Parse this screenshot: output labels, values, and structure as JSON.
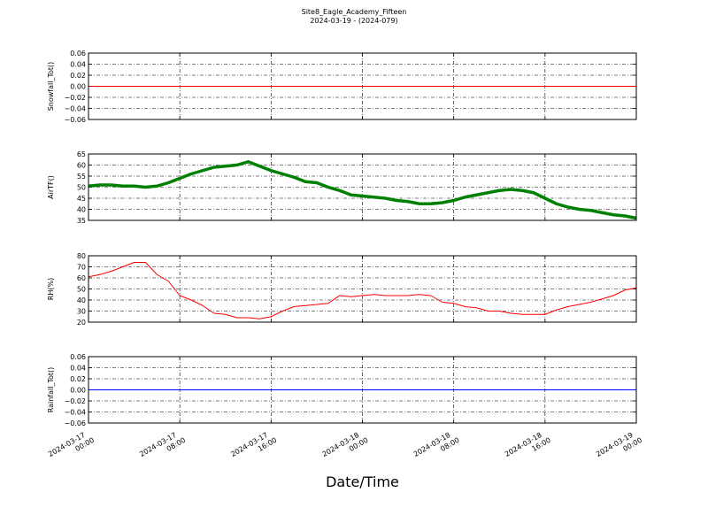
{
  "chart_data": [
    {
      "type": "line",
      "title": "Site8_Eagle_Academy_Fifteen",
      "subtitle": "2024-03-19 - (2024-079)",
      "ylabel": "Snowfall_Tot()",
      "x": [
        "2024-03-17 00:00",
        "2024-03-19 00:00"
      ],
      "series": [
        {
          "color": "#ff0000",
          "values": [
            0,
            0
          ]
        }
      ],
      "xlim": [
        "2024-03-17 00:00",
        "2024-03-19 00:00"
      ],
      "xticks": [
        "2024-03-17 00:00",
        "2024-03-17 08:00",
        "2024-03-17 16:00",
        "2024-03-18 00:00",
        "2024-03-18 08:00",
        "2024-03-18 16:00",
        "2024-03-19 00:00"
      ],
      "ylim": [
        -0.06,
        0.06
      ],
      "yticks": [
        {
          "value": -0.06,
          "label": "−0.06"
        },
        {
          "value": -0.04,
          "label": "−0.04"
        },
        {
          "value": -0.02,
          "label": "−0.02"
        },
        {
          "value": 0,
          "label": "0.00"
        },
        0.02,
        0.04,
        0.06
      ],
      "grid": true
    },
    {
      "type": "line",
      "ylabel": "AirTF()",
      "x": [
        "2024-03-17 00:00",
        "2024-03-17 01:00",
        "2024-03-17 02:00",
        "2024-03-17 03:00",
        "2024-03-17 04:00",
        "2024-03-17 05:00",
        "2024-03-17 06:00",
        "2024-03-17 07:00",
        "2024-03-17 08:00",
        "2024-03-17 09:00",
        "2024-03-17 10:00",
        "2024-03-17 11:00",
        "2024-03-17 12:00",
        "2024-03-17 13:00",
        "2024-03-17 14:00",
        "2024-03-17 15:00",
        "2024-03-17 16:00",
        "2024-03-17 17:00",
        "2024-03-17 18:00",
        "2024-03-17 19:00",
        "2024-03-17 20:00",
        "2024-03-17 21:00",
        "2024-03-17 22:00",
        "2024-03-17 23:00",
        "2024-03-18 00:00",
        "2024-03-18 01:00",
        "2024-03-18 02:00",
        "2024-03-18 03:00",
        "2024-03-18 04:00",
        "2024-03-18 05:00",
        "2024-03-18 06:00",
        "2024-03-18 07:00",
        "2024-03-18 08:00",
        "2024-03-18 09:00",
        "2024-03-18 10:00",
        "2024-03-18 11:00",
        "2024-03-18 12:00",
        "2024-03-18 13:00",
        "2024-03-18 14:00",
        "2024-03-18 15:00",
        "2024-03-18 16:00",
        "2024-03-18 17:00",
        "2024-03-18 18:00",
        "2024-03-18 19:00",
        "2024-03-18 20:00",
        "2024-03-18 21:00",
        "2024-03-18 22:00",
        "2024-03-18 23:00",
        "2024-03-19 00:00"
      ],
      "series": [
        {
          "color": "#008000",
          "values": [
            50.5,
            51,
            51,
            50.5,
            50.5,
            50,
            50.5,
            52,
            54,
            56,
            57.5,
            59,
            59.5,
            60,
            61.5,
            59.5,
            57.5,
            56,
            54.5,
            52.5,
            52,
            50,
            48.5,
            46.5,
            46,
            45.5,
            45,
            44,
            43.5,
            42.5,
            42.5,
            43,
            44,
            45.5,
            46.5,
            47.5,
            48.5,
            49,
            48.5,
            47.5,
            45,
            42.5,
            41,
            40,
            39.5,
            38.5,
            37.5,
            37,
            36
          ]
        }
      ],
      "xlim": [
        "2024-03-17 00:00",
        "2024-03-19 00:00"
      ],
      "xticks": [
        "2024-03-17 00:00",
        "2024-03-17 08:00",
        "2024-03-17 16:00",
        "2024-03-18 00:00",
        "2024-03-18 08:00",
        "2024-03-18 16:00",
        "2024-03-19 00:00"
      ],
      "ylim": [
        35,
        65
      ],
      "yticks": [
        35,
        40,
        45,
        50,
        55,
        60,
        65
      ],
      "grid": true
    },
    {
      "type": "line",
      "ylabel": "RH(%)",
      "x": [
        "2024-03-17 00:00",
        "2024-03-17 01:00",
        "2024-03-17 02:00",
        "2024-03-17 03:00",
        "2024-03-17 04:00",
        "2024-03-17 05:00",
        "2024-03-17 06:00",
        "2024-03-17 07:00",
        "2024-03-17 08:00",
        "2024-03-17 09:00",
        "2024-03-17 10:00",
        "2024-03-17 11:00",
        "2024-03-17 12:00",
        "2024-03-17 13:00",
        "2024-03-17 14:00",
        "2024-03-17 15:00",
        "2024-03-17 16:00",
        "2024-03-17 17:00",
        "2024-03-17 18:00",
        "2024-03-17 19:00",
        "2024-03-17 20:00",
        "2024-03-17 21:00",
        "2024-03-17 22:00",
        "2024-03-17 23:00",
        "2024-03-18 00:00",
        "2024-03-18 01:00",
        "2024-03-18 02:00",
        "2024-03-18 03:00",
        "2024-03-18 04:00",
        "2024-03-18 05:00",
        "2024-03-18 06:00",
        "2024-03-18 07:00",
        "2024-03-18 08:00",
        "2024-03-18 09:00",
        "2024-03-18 10:00",
        "2024-03-18 11:00",
        "2024-03-18 12:00",
        "2024-03-18 13:00",
        "2024-03-18 14:00",
        "2024-03-18 15:00",
        "2024-03-18 16:00",
        "2024-03-18 17:00",
        "2024-03-18 18:00",
        "2024-03-18 19:00",
        "2024-03-18 20:00",
        "2024-03-18 21:00",
        "2024-03-18 22:00",
        "2024-03-18 23:00",
        "2024-03-19 00:00"
      ],
      "series": [
        {
          "color": "#ff0000",
          "values": [
            61,
            63,
            66,
            70,
            74,
            74,
            63,
            57,
            44,
            40,
            35,
            28,
            27,
            24,
            24,
            23,
            25,
            30,
            34,
            35,
            36,
            37,
            44,
            43,
            44,
            45,
            44,
            44,
            44,
            45,
            44,
            38,
            37,
            34,
            33,
            30,
            30,
            28,
            27,
            27,
            27,
            31,
            34,
            36,
            38,
            41,
            44,
            49,
            51
          ]
        }
      ],
      "xlim": [
        "2024-03-17 00:00",
        "2024-03-19 00:00"
      ],
      "xticks": [
        "2024-03-17 00:00",
        "2024-03-17 08:00",
        "2024-03-17 16:00",
        "2024-03-18 00:00",
        "2024-03-18 08:00",
        "2024-03-18 16:00",
        "2024-03-19 00:00"
      ],
      "ylim": [
        20,
        80
      ],
      "yticks": [
        20,
        30,
        40,
        50,
        60,
        70,
        80
      ],
      "grid": true
    },
    {
      "type": "line",
      "ylabel": "Rainfall_Tot()",
      "xlabel": "Date/Time",
      "x": [
        "2024-03-17 00:00",
        "2024-03-19 00:00"
      ],
      "series": [
        {
          "color": "#0000ff",
          "values": [
            0,
            0
          ]
        }
      ],
      "xlim": [
        "2024-03-17 00:00",
        "2024-03-19 00:00"
      ],
      "xticks": [
        "2024-03-17 00:00",
        "2024-03-17 08:00",
        "2024-03-17 16:00",
        "2024-03-18 00:00",
        "2024-03-18 08:00",
        "2024-03-18 16:00",
        "2024-03-19 00:00"
      ],
      "ylim": [
        -0.06,
        0.06
      ],
      "yticks": [
        {
          "value": -0.06,
          "label": "−0.06"
        },
        {
          "value": -0.04,
          "label": "−0.04"
        },
        {
          "value": -0.02,
          "label": "−0.02"
        },
        {
          "value": 0,
          "label": "0.00"
        },
        0.02,
        0.04,
        0.06
      ],
      "grid": true
    }
  ]
}
